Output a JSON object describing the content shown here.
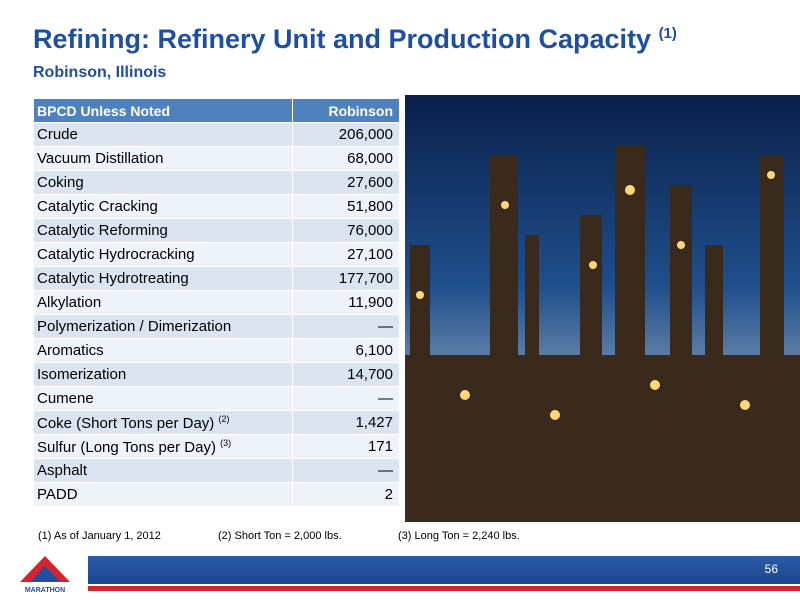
{
  "header": {
    "title": "Refining: Refinery Unit and Production Capacity",
    "title_note": "(1)",
    "subtitle": "Robinson, Illinois"
  },
  "table": {
    "columns": [
      "BPCD Unless Noted",
      "Robinson"
    ],
    "rows": [
      {
        "label": "Crude",
        "value": "206,000"
      },
      {
        "label": "Vacuum Distillation",
        "value": "68,000"
      },
      {
        "label": "Coking",
        "value": "27,600"
      },
      {
        "label": "Catalytic Cracking",
        "value": "51,800"
      },
      {
        "label": "Catalytic Reforming",
        "value": "76,000"
      },
      {
        "label": "Catalytic Hydrocracking",
        "value": "27,100"
      },
      {
        "label": "Catalytic Hydrotreating",
        "value": "177,700"
      },
      {
        "label": "Alkylation",
        "value": "11,900"
      },
      {
        "label": "Polymerization / Dimerization",
        "value": "—"
      },
      {
        "label": "Aromatics",
        "value": "6,100"
      },
      {
        "label": "Isomerization",
        "value": "14,700"
      },
      {
        "label": "Cumene",
        "value": "—"
      },
      {
        "label": "Coke (Short Tons per Day)",
        "note": "(2)",
        "value": "1,427"
      },
      {
        "label": "Sulfur (Long Tons per Day)",
        "note": "(3)",
        "value": "171"
      },
      {
        "label": "Asphalt",
        "value": "—"
      },
      {
        "label": "PADD",
        "value": "2"
      }
    ]
  },
  "footnotes": [
    "(1) As of January 1, 2012",
    "(2) Short Ton = 2,000 lbs.",
    "(3) Long Ton = 2,240 lbs."
  ],
  "footer": {
    "page": "56",
    "logo": "MARATHON"
  }
}
